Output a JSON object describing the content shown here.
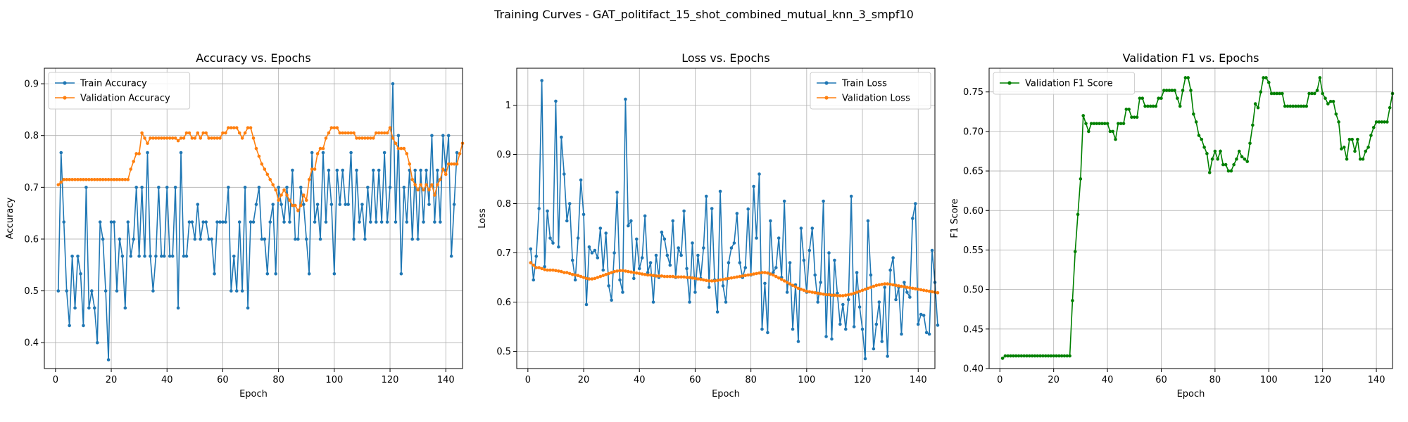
{
  "figure_title": "Training Curves - GAT_politifact_15_shot_combined_mutual_knn_3_smpf10",
  "chart_data": [
    {
      "type": "line",
      "title": "Accuracy vs. Epochs",
      "xlabel": "Epoch",
      "ylabel": "Accuracy",
      "xlim": [
        -4,
        146
      ],
      "ylim": [
        0.35,
        0.93
      ],
      "xticks": [
        0,
        20,
        40,
        60,
        80,
        100,
        120,
        140
      ],
      "yticks": [
        0.4,
        0.5,
        0.6,
        0.7,
        0.8,
        0.9
      ],
      "grid": true,
      "legend_position": "top-left",
      "series": [
        {
          "name": "Train Accuracy",
          "color": "#1f77b4",
          "y": [
            0.5,
            0.767,
            0.633,
            0.5,
            0.433,
            0.567,
            0.467,
            0.567,
            0.533,
            0.433,
            0.7,
            0.467,
            0.5,
            0.467,
            0.4,
            0.633,
            0.6,
            0.5,
            0.367,
            0.633,
            0.633,
            0.5,
            0.6,
            0.567,
            0.467,
            0.633,
            0.567,
            0.6,
            0.7,
            0.567,
            0.7,
            0.567,
            0.767,
            0.567,
            0.5,
            0.567,
            0.7,
            0.567,
            0.567,
            0.7,
            0.567,
            0.567,
            0.7,
            0.467,
            0.767,
            0.567,
            0.567,
            0.633,
            0.633,
            0.6,
            0.667,
            0.6,
            0.633,
            0.633,
            0.6,
            0.6,
            0.533,
            0.633,
            0.633,
            0.633,
            0.633,
            0.7,
            0.5,
            0.567,
            0.5,
            0.633,
            0.5,
            0.7,
            0.467,
            0.633,
            0.633,
            0.667,
            0.7,
            0.6,
            0.6,
            0.533,
            0.633,
            0.667,
            0.533,
            0.7,
            0.667,
            0.633,
            0.7,
            0.633,
            0.733,
            0.6,
            0.6,
            0.7,
            0.667,
            0.6,
            0.533,
            0.767,
            0.633,
            0.667,
            0.6,
            0.767,
            0.633,
            0.733,
            0.667,
            0.533,
            0.733,
            0.667,
            0.733,
            0.667,
            0.667,
            0.767,
            0.6,
            0.733,
            0.633,
            0.667,
            0.6,
            0.7,
            0.633,
            0.733,
            0.633,
            0.733,
            0.633,
            0.767,
            0.633,
            0.7,
            0.9,
            0.633,
            0.8,
            0.533,
            0.7,
            0.633,
            0.733,
            0.6,
            0.733,
            0.6,
            0.733,
            0.633,
            0.733,
            0.667,
            0.8,
            0.633,
            0.733,
            0.633,
            0.8,
            0.733,
            0.8,
            0.567,
            0.667,
            0.767
          ]
        },
        {
          "name": "Validation Accuracy",
          "color": "#ff7f0e",
          "y": [
            0.705,
            0.71,
            0.715,
            0.715,
            0.715,
            0.715,
            0.715,
            0.715,
            0.715,
            0.715,
            0.715,
            0.715,
            0.715,
            0.715,
            0.715,
            0.715,
            0.715,
            0.715,
            0.715,
            0.715,
            0.715,
            0.715,
            0.715,
            0.715,
            0.715,
            0.715,
            0.735,
            0.75,
            0.765,
            0.765,
            0.805,
            0.795,
            0.785,
            0.795,
            0.795,
            0.795,
            0.795,
            0.795,
            0.795,
            0.795,
            0.795,
            0.795,
            0.795,
            0.79,
            0.795,
            0.795,
            0.805,
            0.805,
            0.795,
            0.795,
            0.805,
            0.795,
            0.805,
            0.805,
            0.795,
            0.795,
            0.795,
            0.795,
            0.795,
            0.805,
            0.805,
            0.815,
            0.815,
            0.815,
            0.815,
            0.805,
            0.795,
            0.805,
            0.815,
            0.815,
            0.795,
            0.775,
            0.76,
            0.745,
            0.735,
            0.725,
            0.715,
            0.705,
            0.695,
            0.675,
            0.685,
            0.695,
            0.685,
            0.675,
            0.665,
            0.665,
            0.655,
            0.665,
            0.685,
            0.675,
            0.715,
            0.735,
            0.735,
            0.765,
            0.775,
            0.775,
            0.795,
            0.805,
            0.815,
            0.815,
            0.815,
            0.805,
            0.805,
            0.805,
            0.805,
            0.805,
            0.805,
            0.795,
            0.795,
            0.795,
            0.795,
            0.795,
            0.795,
            0.795,
            0.805,
            0.805,
            0.805,
            0.805,
            0.805,
            0.815,
            0.795,
            0.785,
            0.775,
            0.775,
            0.775,
            0.765,
            0.745,
            0.715,
            0.705,
            0.695,
            0.705,
            0.695,
            0.705,
            0.695,
            0.705,
            0.685,
            0.705,
            0.715,
            0.735,
            0.725,
            0.745,
            0.745,
            0.745,
            0.745,
            0.765,
            0.785
          ]
        }
      ]
    },
    {
      "type": "line",
      "title": "Loss vs. Epochs",
      "xlabel": "Epoch",
      "ylabel": "Loss",
      "xlim": [
        -4,
        146
      ],
      "ylim": [
        0.465,
        1.075
      ],
      "xticks": [
        0,
        20,
        40,
        60,
        80,
        100,
        120,
        140
      ],
      "yticks": [
        0.5,
        0.6,
        0.7,
        0.8,
        0.9,
        1.0
      ],
      "grid": true,
      "legend_position": "top-right",
      "series": [
        {
          "name": "Train Loss",
          "color": "#1f77b4",
          "y": [
            0.708,
            0.645,
            0.693,
            0.79,
            1.05,
            0.672,
            0.785,
            0.73,
            0.72,
            1.008,
            0.712,
            0.935,
            0.86,
            0.765,
            0.8,
            0.685,
            0.645,
            0.73,
            0.848,
            0.778,
            0.595,
            0.712,
            0.7,
            0.705,
            0.69,
            0.75,
            0.665,
            0.74,
            0.633,
            0.604,
            0.7,
            0.823,
            0.645,
            0.62,
            1.012,
            0.755,
            0.765,
            0.648,
            0.728,
            0.668,
            0.69,
            0.775,
            0.66,
            0.68,
            0.6,
            0.695,
            0.65,
            0.742,
            0.728,
            0.695,
            0.675,
            0.765,
            0.65,
            0.71,
            0.695,
            0.785,
            0.668,
            0.6,
            0.72,
            0.62,
            0.695,
            0.648,
            0.71,
            0.815,
            0.63,
            0.79,
            0.645,
            0.58,
            0.825,
            0.633,
            0.6,
            0.68,
            0.71,
            0.72,
            0.78,
            0.68,
            0.65,
            0.67,
            0.789,
            0.655,
            0.835,
            0.73,
            0.86,
            0.545,
            0.638,
            0.538,
            0.765,
            0.66,
            0.67,
            0.73,
            0.65,
            0.805,
            0.62,
            0.68,
            0.545,
            0.635,
            0.52,
            0.75,
            0.685,
            0.62,
            0.705,
            0.75,
            0.655,
            0.6,
            0.64,
            0.805,
            0.53,
            0.7,
            0.525,
            0.685,
            0.618,
            0.555,
            0.595,
            0.545,
            0.605,
            0.815,
            0.55,
            0.66,
            0.59,
            0.545,
            0.485,
            0.765,
            0.655,
            0.505,
            0.555,
            0.6,
            0.52,
            0.63,
            0.49,
            0.665,
            0.69,
            0.605,
            0.63,
            0.535,
            0.64,
            0.62,
            0.61,
            0.77,
            0.8,
            0.555,
            0.575,
            0.573,
            0.538,
            0.535,
            0.705,
            0.64,
            0.553
          ]
        },
        {
          "name": "Validation Loss",
          "color": "#ff7f0e",
          "y": [
            0.68,
            0.675,
            0.67,
            0.67,
            0.668,
            0.666,
            0.665,
            0.665,
            0.665,
            0.664,
            0.663,
            0.662,
            0.66,
            0.66,
            0.658,
            0.656,
            0.655,
            0.654,
            0.652,
            0.65,
            0.648,
            0.647,
            0.647,
            0.648,
            0.65,
            0.652,
            0.654,
            0.656,
            0.658,
            0.66,
            0.662,
            0.663,
            0.664,
            0.664,
            0.663,
            0.662,
            0.661,
            0.66,
            0.659,
            0.658,
            0.657,
            0.656,
            0.655,
            0.655,
            0.654,
            0.653,
            0.653,
            0.653,
            0.652,
            0.652,
            0.652,
            0.652,
            0.651,
            0.651,
            0.651,
            0.651,
            0.65,
            0.65,
            0.649,
            0.648,
            0.647,
            0.646,
            0.645,
            0.644,
            0.643,
            0.643,
            0.643,
            0.644,
            0.645,
            0.646,
            0.647,
            0.648,
            0.649,
            0.65,
            0.651,
            0.652,
            0.653,
            0.654,
            0.655,
            0.656,
            0.657,
            0.658,
            0.659,
            0.66,
            0.66,
            0.659,
            0.657,
            0.655,
            0.652,
            0.649,
            0.646,
            0.643,
            0.64,
            0.637,
            0.634,
            0.631,
            0.628,
            0.626,
            0.624,
            0.622,
            0.621,
            0.62,
            0.619,
            0.618,
            0.617,
            0.616,
            0.615,
            0.615,
            0.614,
            0.614,
            0.613,
            0.613,
            0.613,
            0.614,
            0.615,
            0.616,
            0.618,
            0.62,
            0.622,
            0.624,
            0.626,
            0.628,
            0.63,
            0.632,
            0.634,
            0.635,
            0.636,
            0.637,
            0.637,
            0.636,
            0.635,
            0.634,
            0.633,
            0.632,
            0.631,
            0.63,
            0.629,
            0.628,
            0.627,
            0.626,
            0.625,
            0.624,
            0.623,
            0.622,
            0.621,
            0.62,
            0.619
          ]
        }
      ]
    },
    {
      "type": "line",
      "title": "Validation F1 vs. Epochs",
      "xlabel": "Epoch",
      "ylabel": "F1 Score",
      "xlim": [
        -4,
        146
      ],
      "ylim": [
        0.4,
        0.78
      ],
      "xticks": [
        0,
        20,
        40,
        60,
        80,
        100,
        120,
        140
      ],
      "yticks": [
        0.4,
        0.45,
        0.5,
        0.55,
        0.6,
        0.65,
        0.7,
        0.75
      ],
      "ytick_labels": [
        "0.40",
        "0.45",
        "0.50",
        "0.55",
        "0.60",
        "0.65",
        "0.70",
        "0.75"
      ],
      "grid": true,
      "legend_position": "top-left",
      "series": [
        {
          "name": "Validation F1 Score",
          "color": "#008000",
          "y": [
            0.413,
            0.416,
            0.416,
            0.416,
            0.416,
            0.416,
            0.416,
            0.416,
            0.416,
            0.416,
            0.416,
            0.416,
            0.416,
            0.416,
            0.416,
            0.416,
            0.416,
            0.416,
            0.416,
            0.416,
            0.416,
            0.416,
            0.416,
            0.416,
            0.416,
            0.416,
            0.486,
            0.548,
            0.595,
            0.64,
            0.72,
            0.71,
            0.7,
            0.71,
            0.71,
            0.71,
            0.71,
            0.71,
            0.71,
            0.71,
            0.7,
            0.7,
            0.69,
            0.71,
            0.71,
            0.71,
            0.728,
            0.728,
            0.718,
            0.718,
            0.718,
            0.742,
            0.742,
            0.732,
            0.732,
            0.732,
            0.732,
            0.732,
            0.742,
            0.742,
            0.752,
            0.752,
            0.752,
            0.752,
            0.752,
            0.742,
            0.732,
            0.752,
            0.768,
            0.768,
            0.752,
            0.722,
            0.712,
            0.695,
            0.69,
            0.68,
            0.672,
            0.648,
            0.665,
            0.675,
            0.665,
            0.675,
            0.658,
            0.658,
            0.65,
            0.65,
            0.658,
            0.665,
            0.675,
            0.668,
            0.665,
            0.662,
            0.685,
            0.708,
            0.735,
            0.73,
            0.75,
            0.768,
            0.768,
            0.762,
            0.748,
            0.748,
            0.748,
            0.748,
            0.748,
            0.732,
            0.732,
            0.732,
            0.732,
            0.732,
            0.732,
            0.732,
            0.732,
            0.732,
            0.748,
            0.748,
            0.748,
            0.752,
            0.768,
            0.748,
            0.742,
            0.735,
            0.738,
            0.738,
            0.722,
            0.712,
            0.678,
            0.68,
            0.665,
            0.69,
            0.69,
            0.675,
            0.69,
            0.665,
            0.665,
            0.675,
            0.68,
            0.695,
            0.705,
            0.712,
            0.712,
            0.712,
            0.712,
            0.712,
            0.73,
            0.748
          ]
        }
      ]
    }
  ]
}
